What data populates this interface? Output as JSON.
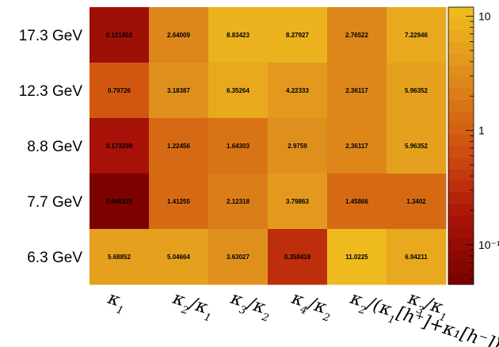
{
  "chart_data": {
    "type": "heatmap",
    "rows": [
      "17.3 GeV",
      "12.3 GeV",
      "8.8 GeV",
      "7.7 GeV",
      "6.3 GeV"
    ],
    "columns": [
      {
        "base": "κ",
        "sub": "1"
      },
      {
        "base": "κ",
        "sub": "2",
        "tail": "/κ",
        "tail_sub": "1"
      },
      {
        "base": "κ",
        "sub": "3",
        "tail": "/κ",
        "tail_sub": "2"
      },
      {
        "base": "κ",
        "sub": "4",
        "tail": "/κ",
        "tail_sub": "2"
      },
      {
        "base": "κ",
        "sub": "2",
        "tail": "/(κ",
        "tail_sub": "1",
        "rest": "[h⁺]+κ₁[h⁻])"
      },
      {
        "base": "κ",
        "sub": "3",
        "tail": "/κ",
        "tail_sub": "1"
      }
    ],
    "values": [
      [
        "0.121802",
        "2.64009",
        "8.83423",
        "8.27927",
        "2.76522",
        "7.22946"
      ],
      [
        "0.79726",
        "3.18387",
        "6.35264",
        "4.22333",
        "2.36117",
        "5.96352"
      ],
      [
        "0.173299",
        "1.22456",
        "1.64303",
        "2.9759",
        "2.36117",
        "5.96352"
      ],
      [
        "0.045329",
        "1.41255",
        "2.12318",
        "3.79863",
        "1.45866",
        "1.3402"
      ],
      [
        "5.68852",
        "5.04664",
        "3.63027",
        "0.358418",
        "11.0225",
        "6.94211"
      ]
    ],
    "z_scale": "log",
    "z_range": [
      0.045,
      12
    ],
    "z_ticks": [
      {
        "value": 10,
        "label": "10"
      },
      {
        "value": 1,
        "label": "1"
      },
      {
        "value": 0.1,
        "label": "10⁻¹"
      }
    ]
  }
}
